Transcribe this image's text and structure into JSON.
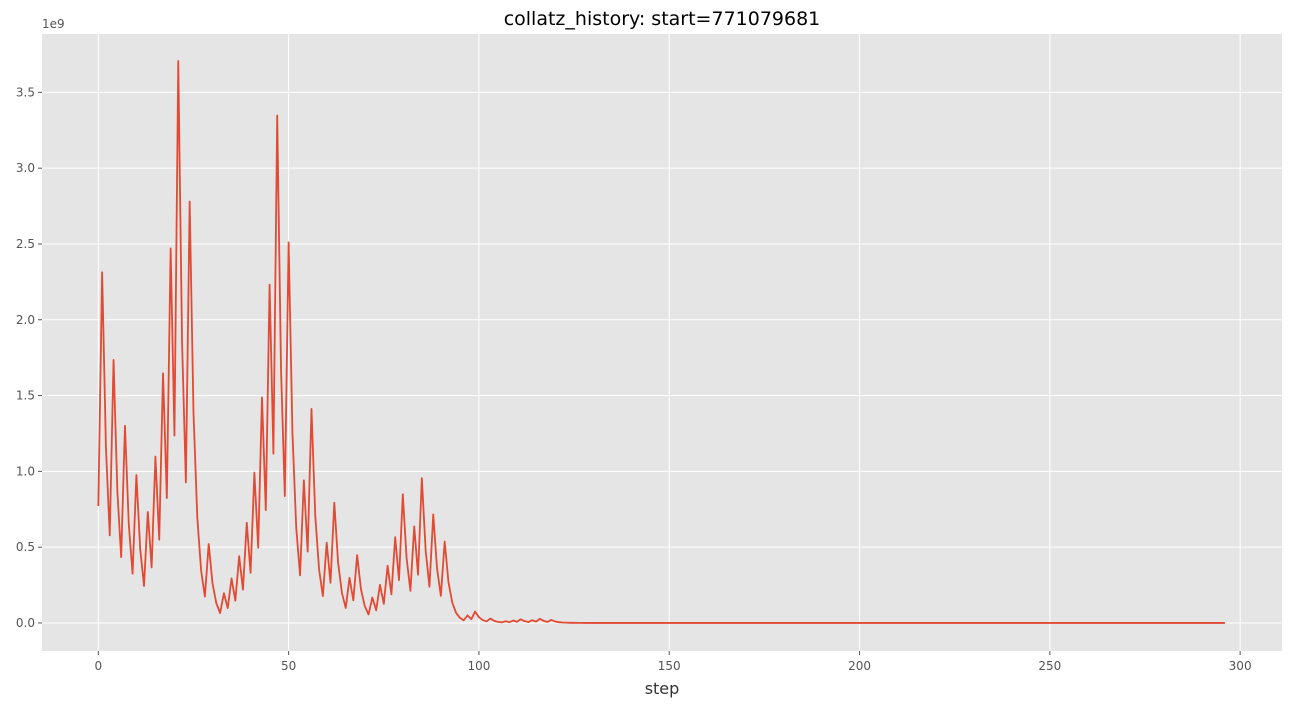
{
  "chart_data": {
    "type": "line",
    "title": "collatz_history: start=771079681",
    "xlabel": "step",
    "ylabel": "",
    "y_offset_label": "1e9",
    "xlim": [
      -14.8,
      311
    ],
    "ylim": [
      -0.185,
      3.885
    ],
    "y_scale_multiplier": 1000000000,
    "xticks": [
      0,
      50,
      100,
      150,
      200,
      250,
      300
    ],
    "xtick_labels": [
      "0",
      "50",
      "100",
      "150",
      "200",
      "250",
      "300"
    ],
    "yticks": [
      0.0,
      0.5,
      1.0,
      1.5,
      2.0,
      2.5,
      3.0,
      3.5
    ],
    "ytick_labels": [
      "0.0",
      "0.5",
      "1.0",
      "1.5",
      "2.0",
      "2.5",
      "3.0",
      "3.5"
    ],
    "grid": true,
    "style": "ggplot",
    "colors": {
      "line": "#E24A33",
      "background": "#E5E5E5",
      "grid": "#FFFFFF"
    },
    "series": [
      {
        "x": [
          0,
          1,
          2,
          3,
          4,
          5,
          6,
          7,
          8,
          9,
          10,
          11,
          12,
          13,
          14,
          15,
          16,
          17,
          18,
          19,
          20,
          21,
          22,
          23,
          24,
          25,
          26,
          27,
          28,
          29,
          30,
          31,
          32,
          33,
          34,
          35,
          36,
          37,
          38,
          39,
          40,
          41,
          42,
          43,
          44,
          45,
          46,
          47,
          48,
          49,
          50,
          51,
          52,
          53,
          54,
          55,
          56,
          57,
          58,
          59,
          60,
          61,
          62,
          63,
          64,
          65,
          66,
          67,
          68,
          69,
          70,
          71,
          72,
          73,
          74,
          75,
          76,
          77,
          78,
          79,
          80,
          81,
          82,
          83,
          84,
          85,
          86,
          87,
          88,
          89,
          90,
          91,
          92,
          93,
          94,
          95,
          96,
          97,
          98,
          99,
          100,
          101,
          102,
          103,
          104,
          105,
          106,
          107,
          108,
          109,
          110,
          111,
          112,
          113,
          114,
          115,
          116,
          117,
          118,
          119,
          120,
          121,
          122,
          123,
          124,
          125,
          126,
          127,
          128,
          129,
          130,
          296
        ],
        "values": [
          0.771,
          2.313,
          1.157,
          0.578,
          1.735,
          0.868,
          0.434,
          1.301,
          0.651,
          0.325,
          0.976,
          0.488,
          0.244,
          0.732,
          0.366,
          1.098,
          0.549,
          1.647,
          0.824,
          2.471,
          1.236,
          3.707,
          1.854,
          0.927,
          2.78,
          1.39,
          0.695,
          0.348,
          0.174,
          0.521,
          0.261,
          0.13,
          0.065,
          0.196,
          0.098,
          0.294,
          0.147,
          0.441,
          0.22,
          0.661,
          0.331,
          0.992,
          0.496,
          1.488,
          0.744,
          2.232,
          1.116,
          3.347,
          1.674,
          0.837,
          2.51,
          1.255,
          0.628,
          0.314,
          0.941,
          0.471,
          1.412,
          0.706,
          0.353,
          0.177,
          0.53,
          0.265,
          0.794,
          0.397,
          0.199,
          0.099,
          0.298,
          0.149,
          0.447,
          0.224,
          0.112,
          0.056,
          0.168,
          0.084,
          0.252,
          0.126,
          0.377,
          0.189,
          0.566,
          0.283,
          0.849,
          0.425,
          0.212,
          0.637,
          0.318,
          0.955,
          0.478,
          0.239,
          0.716,
          0.358,
          0.179,
          0.537,
          0.269,
          0.134,
          0.067,
          0.034,
          0.017,
          0.05,
          0.025,
          0.075,
          0.038,
          0.019,
          0.01,
          0.029,
          0.014,
          0.007,
          0.004,
          0.011,
          0.005,
          0.016,
          0.008,
          0.024,
          0.012,
          0.006,
          0.018,
          0.009,
          0.027,
          0.014,
          0.007,
          0.02,
          0.01,
          0.005,
          0.003,
          0.002,
          0.001,
          0.001,
          0.0005,
          0.0003,
          0.0002,
          0.0001,
          0.0001,
          1e-09
        ]
      }
    ]
  }
}
